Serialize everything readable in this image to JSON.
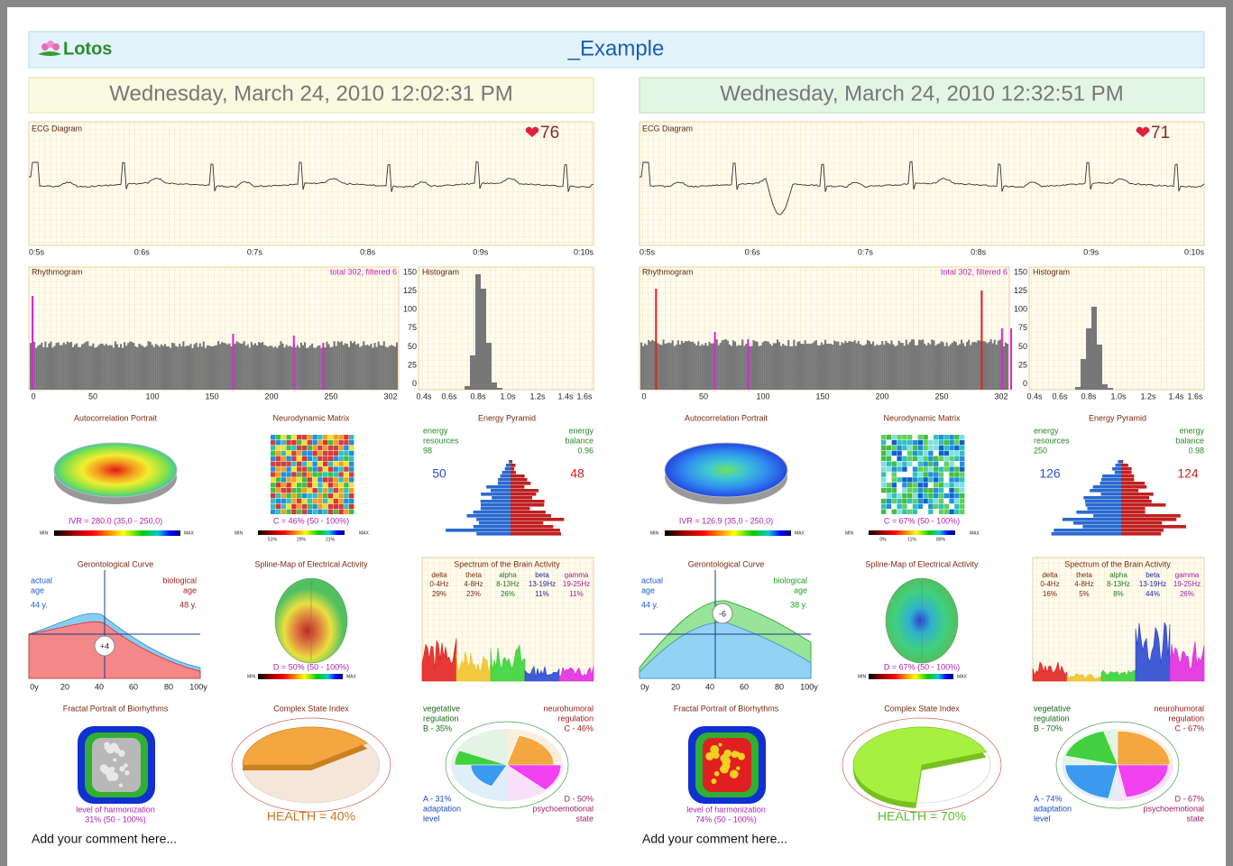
{
  "header": {
    "logo": "Lotos",
    "title": "_Example"
  },
  "panels": [
    {
      "date": "Wednesday, March 24, 2010 12:02:31 PM",
      "ecg": {
        "title": "ECG Diagram",
        "heart_rate": "76",
        "ticks": [
          "0:5s",
          "0:6s",
          "0:7s",
          "0:8s",
          "0:9s",
          "0:10s"
        ]
      },
      "rhythmogram": {
        "title": "Rhythmogram",
        "note": "total 302, filtered 6",
        "ticks": [
          "0",
          "50",
          "100",
          "150",
          "200",
          "250",
          "302"
        ]
      },
      "histogram": {
        "title": "Histogram",
        "yticks": [
          "150",
          "125",
          "100",
          "75",
          "50",
          "25",
          "0"
        ],
        "xticks": [
          "0.4s",
          "0.6s",
          "0.8s",
          "1.0s",
          "1.2s",
          "1.4s",
          "1.6s"
        ]
      },
      "autocorrelation": {
        "title": "Autocorrelation Portrait",
        "ivr": "IVR = 280.0 (35,0 - 250,0)",
        "min": "MIN",
        "max": "MAX"
      },
      "neurodynamic": {
        "title": "Neurodynamic Matrix",
        "c": "C = 46% (50 - 100%)",
        "min": "MIN",
        "max": "MAX",
        "scale": [
          "51%",
          "29%",
          "21%"
        ]
      },
      "energy": {
        "title": "Energy Pyramid",
        "left_label": [
          "energy",
          "resources"
        ],
        "left_value": "98",
        "right_label": [
          "energy",
          "balance"
        ],
        "right_value": "0.96",
        "left_big": "50",
        "right_big": "48"
      },
      "gerontological": {
        "title": "Gerontological Curve",
        "actual_label": [
          "actual",
          "age"
        ],
        "actual_age": "44 y.",
        "bio_label": [
          "biological",
          "age"
        ],
        "bio_age": "48 y.",
        "diff": "+4",
        "ticks": [
          "0y",
          "20",
          "40",
          "60",
          "80",
          "100y"
        ]
      },
      "spline": {
        "title": "Spline-Map of Electrical Activity",
        "d": "D = 50% (50 - 100%)",
        "min": "MIN",
        "max": "MAX"
      },
      "spectrum": {
        "title": "Spectrum of the Brain Activity",
        "bands": [
          {
            "name": "delta",
            "range": "0-4Hz",
            "pct": "29%"
          },
          {
            "name": "theta",
            "range": "4-8Hz",
            "pct": "23%"
          },
          {
            "name": "alpha",
            "range": "8-13Hz",
            "pct": "26%"
          },
          {
            "name": "beta",
            "range": "13-19Hz",
            "pct": "11%"
          },
          {
            "name": "gamma",
            "range": "19-25Hz",
            "pct": "11%"
          }
        ]
      },
      "fractal": {
        "title": "Fractal Portrait of Biorhythms",
        "level": "level of harmonization",
        "value": "31% (50 - 100%)"
      },
      "complex": {
        "title": "Complex State Index",
        "health": "HEALTH = 40%"
      },
      "balance": {
        "top_left": [
          "vegetative",
          "regulation",
          "B - 35%"
        ],
        "top_right": [
          "neurohumoral",
          "regulation",
          "C - 46%"
        ],
        "bottom_left": [
          "A - 31%",
          "adaptation",
          "level"
        ],
        "bottom_right": [
          "D - 50%",
          "psychoemotional",
          "state"
        ]
      },
      "comment": "Add your comment here..."
    },
    {
      "date": "Wednesday, March 24, 2010 12:32:51 PM",
      "ecg": {
        "title": "ECG Diagram",
        "heart_rate": "71",
        "ticks": [
          "0:5s",
          "0:6s",
          "0:7s",
          "0:8s",
          "0:9s",
          "0:10s"
        ]
      },
      "rhythmogram": {
        "title": "Rhythmogram",
        "note": "total 302, filtered 6",
        "ticks": [
          "0",
          "50",
          "100",
          "150",
          "200",
          "250",
          "302"
        ]
      },
      "histogram": {
        "title": "Histogram",
        "yticks": [
          "150",
          "125",
          "100",
          "75",
          "50",
          "25",
          "0"
        ],
        "xticks": [
          "0.4s",
          "0.6s",
          "0.8s",
          "1.0s",
          "1.2s",
          "1.4s",
          "1.6s"
        ]
      },
      "autocorrelation": {
        "title": "Autocorrelation Portrait",
        "ivr": "IVR = 126.9 (35,0 - 250,0)",
        "min": "MIN",
        "max": "MAX"
      },
      "neurodynamic": {
        "title": "Neurodynamic Matrix",
        "c": "C = 67% (50 - 100%)",
        "min": "MIN",
        "max": "MAX",
        "scale": [
          "0%",
          "11%",
          "89%"
        ]
      },
      "energy": {
        "title": "Energy Pyramid",
        "left_label": [
          "energy",
          "resources"
        ],
        "left_value": "250",
        "right_label": [
          "energy",
          "balance"
        ],
        "right_value": "0.98",
        "left_big": "126",
        "right_big": "124"
      },
      "gerontological": {
        "title": "Gerontological Curve",
        "actual_label": [
          "actual",
          "age"
        ],
        "actual_age": "44 y.",
        "bio_label": [
          "biological",
          "age"
        ],
        "bio_age": "38 y.",
        "diff": "-6",
        "ticks": [
          "0y",
          "20",
          "40",
          "60",
          "80",
          "100y"
        ]
      },
      "spline": {
        "title": "Spline-Map of Electrical Activity",
        "d": "D = 67% (50 - 100%)",
        "min": "MIN",
        "max": "MAX"
      },
      "spectrum": {
        "title": "Spectrum of the Brain Activity",
        "bands": [
          {
            "name": "delta",
            "range": "0-4Hz",
            "pct": "16%"
          },
          {
            "name": "theta",
            "range": "4-8Hz",
            "pct": "5%"
          },
          {
            "name": "alpha",
            "range": "8-13Hz",
            "pct": "8%"
          },
          {
            "name": "beta",
            "range": "13-19Hz",
            "pct": "44%"
          },
          {
            "name": "gamma",
            "range": "19-25Hz",
            "pct": "26%"
          }
        ]
      },
      "fractal": {
        "title": "Fractal Portrait of Biorhythms",
        "level": "level of harmonization",
        "value": "74% (50 - 100%)"
      },
      "complex": {
        "title": "Complex State Index",
        "health": "HEALTH = 70%"
      },
      "balance": {
        "top_left": [
          "vegetative",
          "regulation",
          "B - 70%"
        ],
        "top_right": [
          "neurohumoral",
          "regulation",
          "C - 67%"
        ],
        "bottom_left": [
          "A - 74%",
          "adaptation",
          "level"
        ],
        "bottom_right": [
          "D - 67%",
          "psychoemotional",
          "state"
        ]
      },
      "comment": "Add your comment here..."
    }
  ]
}
